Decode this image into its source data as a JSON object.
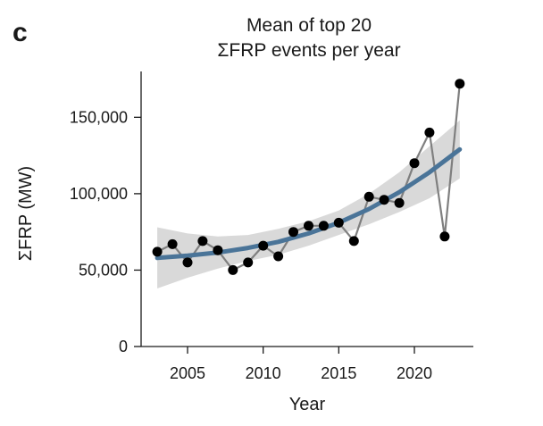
{
  "panel_label": "c",
  "chart_data": {
    "type": "line",
    "title_lines": [
      "Mean of top 20",
      "ΣFRP events per year"
    ],
    "xlabel": "Year",
    "ylabel": "ΣFRP (MW)",
    "xlim": [
      2001,
      2025
    ],
    "ylim": [
      0,
      180000
    ],
    "xticks": [
      2005,
      2010,
      2015,
      2020
    ],
    "xtick_labels": [
      "2005",
      "2010",
      "2015",
      "2020"
    ],
    "yticks": [
      0,
      50000,
      100000,
      150000
    ],
    "ytick_labels": [
      "0",
      "50,000",
      "100,000",
      "150,000"
    ],
    "grid": false,
    "legend": "none",
    "series": [
      {
        "type": "line+markers",
        "color": "#7f7f7f",
        "marker_color": "#000000",
        "x": [
          2003,
          2004,
          2005,
          2006,
          2007,
          2008,
          2009,
          2010,
          2011,
          2012,
          2013,
          2014,
          2015,
          2016,
          2017,
          2018,
          2019,
          2020,
          2021,
          2022,
          2023
        ],
        "y": [
          62000,
          67000,
          55000,
          69000,
          63000,
          50000,
          55000,
          66000,
          59000,
          75000,
          79000,
          79000,
          81000,
          69000,
          98000,
          96000,
          94000,
          120000,
          140000,
          72000,
          172000
        ]
      },
      {
        "type": "trend",
        "color": "#4a7498",
        "x": [
          2003,
          2005,
          2007,
          2009,
          2011,
          2013,
          2015,
          2017,
          2019,
          2021,
          2023
        ],
        "y": [
          58000,
          59500,
          61500,
          64500,
          68500,
          74000,
          81000,
          90000,
          101000,
          114000,
          129000
        ]
      },
      {
        "type": "confidence-band",
        "color": "#d9d9d9",
        "x": [
          2003,
          2005,
          2007,
          2009,
          2011,
          2013,
          2015,
          2017,
          2019,
          2021,
          2023
        ],
        "lower": [
          38000,
          45000,
          51000,
          56000,
          60000,
          66000,
          73000,
          80000,
          88000,
          97000,
          110000
        ],
        "upper": [
          78000,
          74000,
          72000,
          73000,
          77000,
          82000,
          89000,
          100000,
          114000,
          131000,
          148000
        ]
      }
    ]
  }
}
